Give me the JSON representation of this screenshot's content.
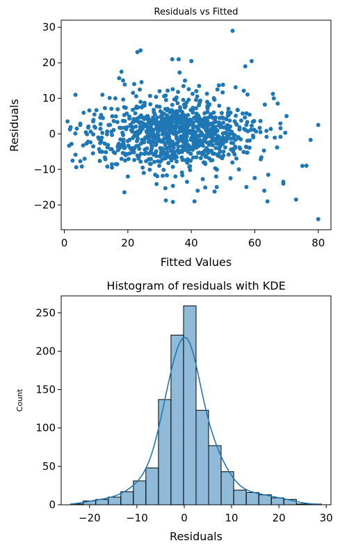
{
  "chart_data": [
    {
      "type": "scatter",
      "title": "Residuals vs Fitted",
      "xlabel": "Fitted Values",
      "ylabel": "Residuals",
      "xlim": [
        -1,
        84
      ],
      "ylim": [
        -27,
        32
      ],
      "xticks": [
        0,
        20,
        40,
        60,
        80
      ],
      "yticks": [
        -20,
        -10,
        0,
        10,
        20,
        30
      ],
      "grid": false,
      "color": "#1f77b4",
      "n_points": 1000,
      "points_sample": [
        [
          53,
          29
        ],
        [
          80,
          -24
        ],
        [
          24,
          23.5
        ],
        [
          23,
          23
        ],
        [
          36,
          21
        ],
        [
          34,
          21
        ],
        [
          40,
          20.5
        ],
        [
          73,
          -18.5
        ],
        [
          41,
          -19
        ],
        [
          64,
          -19
        ],
        [
          59,
          20.5
        ],
        [
          18,
          17.5
        ],
        [
          12,
          11
        ],
        [
          3.5,
          11
        ],
        [
          1,
          3.5
        ],
        [
          5,
          2.5
        ],
        [
          80,
          2.5
        ],
        [
          75,
          -9
        ],
        [
          69,
          -13.5
        ],
        [
          63,
          -16
        ],
        [
          69,
          -14
        ],
        [
          22,
          14
        ],
        [
          38,
          15
        ],
        [
          57,
          19
        ],
        [
          48,
          -15
        ],
        [
          30,
          12
        ],
        [
          45,
          9
        ],
        [
          55,
          -10
        ],
        [
          66,
          10
        ],
        [
          70,
          5
        ],
        [
          15,
          -9.5
        ],
        [
          20,
          -12
        ],
        [
          25,
          -11
        ],
        [
          35,
          -12
        ],
        [
          42,
          -16
        ]
      ]
    },
    {
      "type": "bar",
      "title": "Histogram of residuals with KDE",
      "xlabel": "Residuals",
      "ylabel": "Count",
      "xlim": [
        -26,
        31
      ],
      "ylim": [
        0,
        272
      ],
      "xticks": [
        -20,
        -10,
        0,
        10,
        20,
        30
      ],
      "yticks": [
        0,
        50,
        100,
        150,
        200,
        250
      ],
      "bin_edges": [
        -24,
        -21.35,
        -18.7,
        -16.05,
        -13.4,
        -10.75,
        -8.1,
        -5.45,
        -2.8,
        -0.15,
        2.5,
        5.15,
        7.8,
        10.45,
        13.1,
        15.75,
        18.4,
        21.05,
        23.7,
        26.35,
        29
      ],
      "counts": [
        1,
        5,
        7,
        10,
        17,
        31,
        48,
        137,
        221,
        259,
        123,
        77,
        43,
        19,
        16,
        13,
        9,
        7,
        1,
        1
      ],
      "bar_color": "#1f77b4",
      "bar_alpha": 0.5,
      "kde_color": "#1f77b4",
      "grid": false
    }
  ]
}
